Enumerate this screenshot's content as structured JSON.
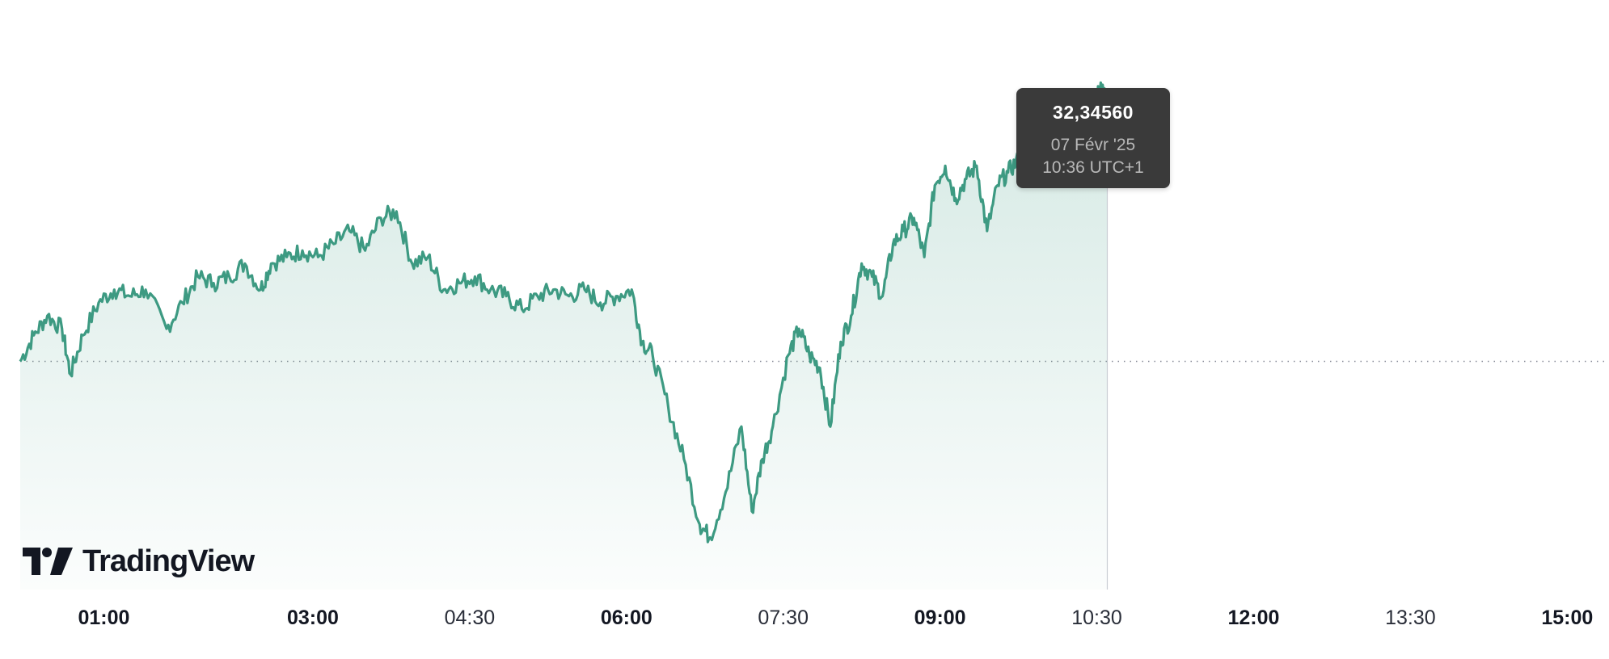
{
  "chart_data": {
    "type": "area",
    "title": "",
    "x_tick_labels": [
      {
        "label": "01:00",
        "weight": "bold",
        "hour": 1.0
      },
      {
        "label": "03:00",
        "weight": "bold",
        "hour": 3.0
      },
      {
        "label": "04:30",
        "weight": "normal",
        "hour": 4.5
      },
      {
        "label": "06:00",
        "weight": "bold",
        "hour": 6.0
      },
      {
        "label": "07:30",
        "weight": "normal",
        "hour": 7.5
      },
      {
        "label": "09:00",
        "weight": "bold",
        "hour": 9.0
      },
      {
        "label": "10:30",
        "weight": "normal",
        "hour": 10.5
      },
      {
        "label": "12:00",
        "weight": "bold",
        "hour": 12.0
      },
      {
        "label": "13:30",
        "weight": "normal",
        "hour": 13.5
      },
      {
        "label": "15:00",
        "weight": "bold",
        "hour": 15.0
      }
    ],
    "x_range_hours": [
      0.2,
      15.4
    ],
    "y_range": [
      31.6,
      32.43
    ],
    "baseline_value": 31.95,
    "last_point": {
      "time": "10:36",
      "value": 32.3456
    },
    "series": [
      {
        "color": "#3d9a82",
        "points": [
          [
            0.2,
            31.95
          ],
          [
            0.33,
            31.99
          ],
          [
            0.46,
            32.02
          ],
          [
            0.6,
            32.0
          ],
          [
            0.68,
            31.93
          ],
          [
            0.8,
            31.99
          ],
          [
            0.95,
            32.04
          ],
          [
            1.1,
            32.06
          ],
          [
            1.25,
            32.05
          ],
          [
            1.4,
            32.06
          ],
          [
            1.6,
            32.0
          ],
          [
            1.75,
            32.04
          ],
          [
            1.9,
            32.08
          ],
          [
            2.05,
            32.07
          ],
          [
            2.2,
            32.08
          ],
          [
            2.35,
            32.1
          ],
          [
            2.5,
            32.06
          ],
          [
            2.6,
            32.1
          ],
          [
            2.75,
            32.11
          ],
          [
            2.9,
            32.12
          ],
          [
            3.05,
            32.11
          ],
          [
            3.2,
            32.13
          ],
          [
            3.35,
            32.15
          ],
          [
            3.5,
            32.12
          ],
          [
            3.65,
            32.17
          ],
          [
            3.8,
            32.18
          ],
          [
            3.95,
            32.1
          ],
          [
            4.1,
            32.11
          ],
          [
            4.25,
            32.06
          ],
          [
            4.4,
            32.07
          ],
          [
            4.55,
            32.08
          ],
          [
            4.7,
            32.06
          ],
          [
            4.85,
            32.05
          ],
          [
            5.0,
            32.03
          ],
          [
            5.15,
            32.05
          ],
          [
            5.3,
            32.06
          ],
          [
            5.45,
            32.05
          ],
          [
            5.6,
            32.06
          ],
          [
            5.75,
            32.04
          ],
          [
            5.9,
            32.05
          ],
          [
            6.05,
            32.06
          ],
          [
            6.15,
            31.98
          ],
          [
            6.25,
            31.96
          ],
          [
            6.4,
            31.88
          ],
          [
            6.55,
            31.8
          ],
          [
            6.7,
            31.7
          ],
          [
            6.8,
            31.68
          ],
          [
            6.95,
            31.75
          ],
          [
            7.1,
            31.85
          ],
          [
            7.2,
            31.72
          ],
          [
            7.3,
            31.8
          ],
          [
            7.4,
            31.85
          ],
          [
            7.55,
            31.96
          ],
          [
            7.65,
            32.0
          ],
          [
            7.75,
            31.96
          ],
          [
            7.85,
            31.94
          ],
          [
            7.95,
            31.85
          ],
          [
            8.05,
            31.98
          ],
          [
            8.15,
            32.02
          ],
          [
            8.25,
            32.1
          ],
          [
            8.35,
            32.08
          ],
          [
            8.45,
            32.05
          ],
          [
            8.55,
            32.13
          ],
          [
            8.65,
            32.15
          ],
          [
            8.75,
            32.17
          ],
          [
            8.85,
            32.11
          ],
          [
            8.95,
            32.22
          ],
          [
            9.05,
            32.25
          ],
          [
            9.15,
            32.2
          ],
          [
            9.25,
            32.23
          ],
          [
            9.35,
            32.25
          ],
          [
            9.45,
            32.15
          ],
          [
            9.55,
            32.22
          ],
          [
            9.65,
            32.24
          ],
          [
            9.75,
            32.26
          ],
          [
            9.85,
            32.27
          ],
          [
            9.95,
            32.31
          ],
          [
            10.05,
            32.28
          ],
          [
            10.15,
            32.35
          ],
          [
            10.25,
            32.32
          ],
          [
            10.35,
            32.36
          ],
          [
            10.45,
            32.33
          ],
          [
            10.52,
            32.37
          ],
          [
            10.6,
            32.35
          ]
        ]
      }
    ],
    "grid": false,
    "legend": "none"
  },
  "tooltip": {
    "value": "32,34560",
    "date": "07 Févr '25",
    "time": "10:36 UTC+1"
  },
  "branding": {
    "logo_text": "TradingView"
  },
  "colors": {
    "line": "#3d9a82",
    "area_top": "#3d9a82",
    "baseline": "#8a8e99",
    "tooltip_bg": "#3a3a3a",
    "text": "#131722"
  }
}
